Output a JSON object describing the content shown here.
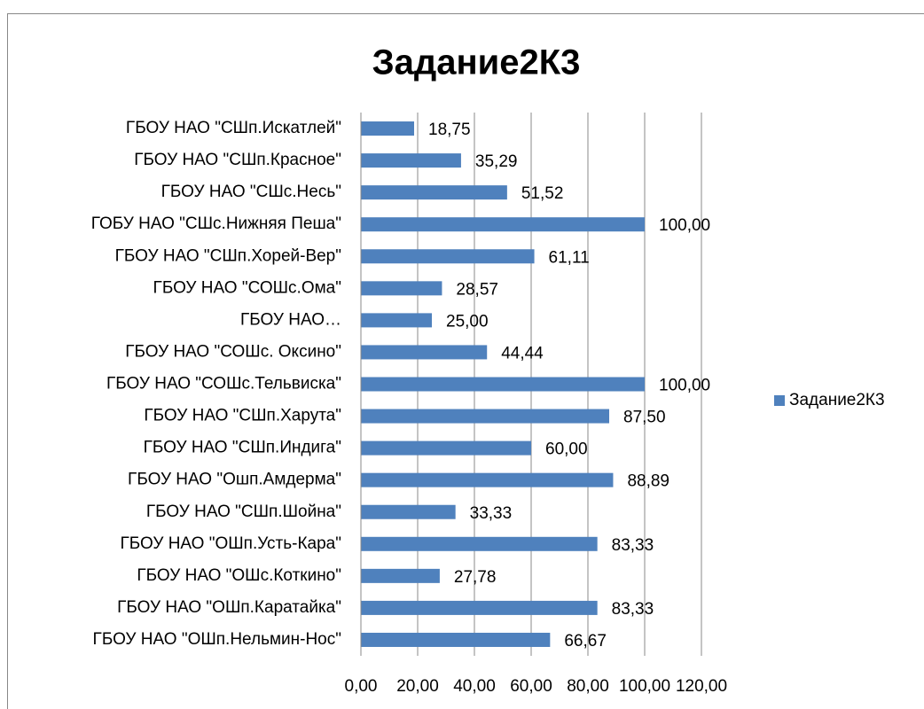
{
  "chart_data": {
    "type": "bar",
    "orientation": "horizontal",
    "title": "Задание2К3",
    "categories": [
      "ГБОУ НАО \"СШп.Искатлей\"",
      "ГБОУ НАО \"СШп.Красное\"",
      "ГБОУ НАО \"СШс.Несь\"",
      "ГОБУ НАО \"СШс.Нижняя Пеша\"",
      "ГБОУ НАО \"СШп.Хорей-Вер\"",
      "ГБОУ НАО \"СОШс.Ома\"",
      "ГБОУ НАО…",
      "ГБОУ НАО \"СОШс. Оксино\"",
      "ГБОУ НАО \"СОШс.Тельвиска\"",
      "ГБОУ НАО \"СШп.Харута\"",
      "ГБОУ НАО \"СШп.Индига\"",
      "ГБОУ НАО \"Ошп.Амдерма\"",
      "ГБОУ НАО \"СШп.Шойна\"",
      "ГБОУ НАО \"ОШп.Усть-Кара\"",
      "ГБОУ НАО \"ОШс.Коткино\"",
      "ГБОУ НАО \"ОШп.Каратайка\"",
      "ГБОУ НАО \"ОШп.Нельмин-Нос\""
    ],
    "series": [
      {
        "name": "Задание2К3",
        "color": "#4f81bd",
        "values": [
          18.75,
          35.29,
          51.52,
          100,
          61.11,
          28.57,
          25,
          44.44,
          100,
          87.5,
          60,
          88.89,
          33.33,
          83.33,
          27.78,
          83.33,
          66.67
        ],
        "value_labels": [
          "18,75",
          "35,29",
          "51,52",
          "100,00",
          "61,11",
          "28,57",
          "25,00",
          "44,44",
          "100,00",
          "87,50",
          "60,00",
          "88,89",
          "33,33",
          "83,33",
          "27,78",
          "83,33",
          "66,67"
        ]
      }
    ],
    "xlim": [
      0,
      120
    ],
    "xticks": [
      {
        "value": 0,
        "label": "0,00"
      },
      {
        "value": 20,
        "label": "20,00"
      },
      {
        "value": 40,
        "label": "40,00"
      },
      {
        "value": 60,
        "label": "60,00"
      },
      {
        "value": 80,
        "label": "80,00"
      },
      {
        "value": 100,
        "label": "100,00"
      },
      {
        "value": 120,
        "label": "120,00"
      }
    ],
    "grid": true,
    "legend": "right"
  }
}
